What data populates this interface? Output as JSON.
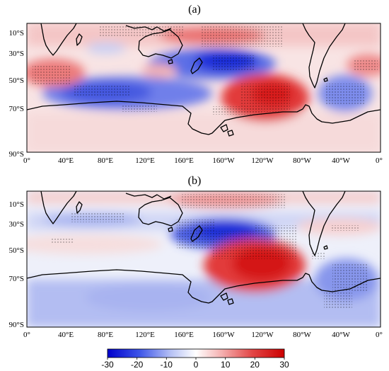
{
  "panels": [
    {
      "label": "(a)",
      "lat_labels": [
        "10°S",
        "30°S",
        "50°S",
        "70°S",
        "90°S"
      ],
      "lon_labels": [
        "0°",
        "40°E",
        "80°E",
        "120°E",
        "160°E",
        "160°W",
        "120°W",
        "80°W",
        "40°W",
        "0°"
      ]
    },
    {
      "label": "(b)",
      "lat_labels": [
        "10°S",
        "30°S",
        "50°S",
        "70°S",
        "90°S"
      ],
      "lon_labels": [
        "0°",
        "40°E",
        "80°E",
        "120°E",
        "160°E",
        "160°W",
        "120°W",
        "80°W",
        "40°W",
        "0°"
      ]
    }
  ],
  "colorbar": {
    "ticks": [
      "-30",
      "-20",
      "-10",
      "0",
      "10",
      "20",
      "30"
    ],
    "range": [
      -30,
      30
    ],
    "colors": [
      "#0000cc",
      "#4d63e6",
      "#b9c3f5",
      "#ffffff",
      "#f4b4b4",
      "#e54a4a",
      "#cc0000"
    ]
  },
  "colors": {
    "positive": "#e02020",
    "negative": "#1f2fd8",
    "neutral": "#ffffff",
    "coast": "#000000"
  }
}
